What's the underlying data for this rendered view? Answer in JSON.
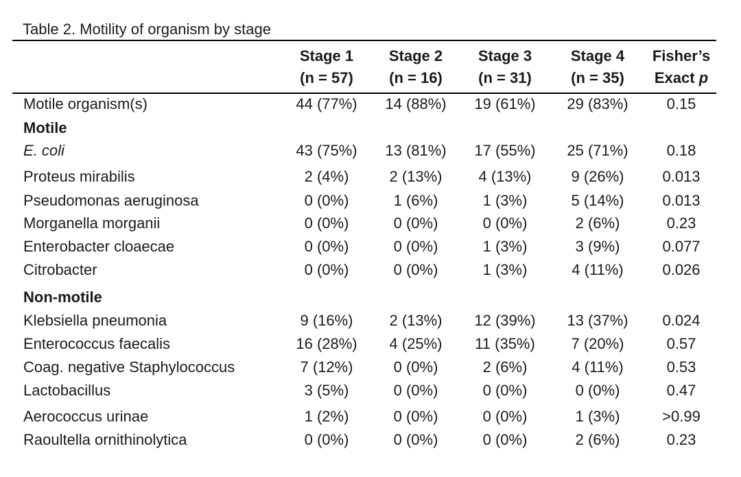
{
  "caption": "Table 2. Motility of organism by stage",
  "columns": [
    {
      "line1": "Stage 1",
      "line2": "(n = 57)"
    },
    {
      "line1": "Stage 2",
      "line2": "(n = 16)"
    },
    {
      "line1": "Stage 3",
      "line2": "(n = 31)"
    },
    {
      "line1": "Stage 4",
      "line2": "(n = 35)"
    },
    {
      "line1": "Fisher’s",
      "line2": "Exact p"
    }
  ],
  "rows": [
    {
      "kind": "data",
      "label": "Motile organism(s)",
      "italic": false,
      "values": [
        "44 (77%)",
        "14 (88%)",
        "19 (61%)",
        "29 (83%)",
        "0.15"
      ]
    },
    {
      "kind": "section",
      "label": "Motile"
    },
    {
      "kind": "data",
      "label": "E. coli",
      "italic": true,
      "values": [
        "43 (75%)",
        "13 (81%)",
        "17 (55%)",
        "25 (71%)",
        "0.18"
      ]
    },
    {
      "kind": "data",
      "label": "Proteus mirabilis",
      "italic": false,
      "values": [
        "2 (4%)",
        "2 (13%)",
        "4 (13%)",
        "9 (26%)",
        "0.013"
      ]
    },
    {
      "kind": "data",
      "label": "Pseudomonas aeruginosa",
      "italic": false,
      "values": [
        "0 (0%)",
        "1 (6%)",
        "1 (3%)",
        "5 (14%)",
        "0.013"
      ]
    },
    {
      "kind": "data",
      "label": "Morganella morganii",
      "italic": false,
      "values": [
        "0 (0%)",
        "0 (0%)",
        "0 (0%)",
        "2 (6%)",
        "0.23"
      ]
    },
    {
      "kind": "data",
      "label": "Enterobacter cloaecae",
      "italic": false,
      "values": [
        "0 (0%)",
        "0 (0%)",
        "1 (3%)",
        "3 (9%)",
        "0.077"
      ]
    },
    {
      "kind": "data",
      "label": "Citrobacter",
      "italic": false,
      "values": [
        "0 (0%)",
        "0 (0%)",
        "1 (3%)",
        "4 (11%)",
        "0.026"
      ]
    },
    {
      "kind": "section",
      "label": "Non-motile"
    },
    {
      "kind": "data",
      "label": "Klebsiella pneumonia",
      "italic": false,
      "values": [
        "9 (16%)",
        "2 (13%)",
        "12 (39%)",
        "13 (37%)",
        "0.024"
      ]
    },
    {
      "kind": "data",
      "label": "Enterococcus faecalis",
      "italic": false,
      "values": [
        "16 (28%)",
        "4 (25%)",
        "11 (35%)",
        "7 (20%)",
        "0.57"
      ]
    },
    {
      "kind": "data",
      "label": "Coag. negative Staphylococcus",
      "italic": false,
      "values": [
        "7 (12%)",
        "0 (0%)",
        "2 (6%)",
        "4 (11%)",
        "0.53"
      ]
    },
    {
      "kind": "data",
      "label": "Lactobacillus",
      "italic": false,
      "values": [
        "3 (5%)",
        "0 (0%)",
        "0 (0%)",
        "0 (0%)",
        "0.47"
      ]
    },
    {
      "kind": "data",
      "label": "Aerococcus urinae",
      "italic": false,
      "values": [
        "1 (2%)",
        "0 (0%)",
        "0 (0%)",
        "1 (3%)",
        ">0.99"
      ]
    },
    {
      "kind": "data",
      "label": "Raoultella ornithinolytica",
      "italic": false,
      "values": [
        "0 (0%)",
        "0 (0%)",
        "0 (0%)",
        "2 (6%)",
        "0.23"
      ]
    }
  ]
}
